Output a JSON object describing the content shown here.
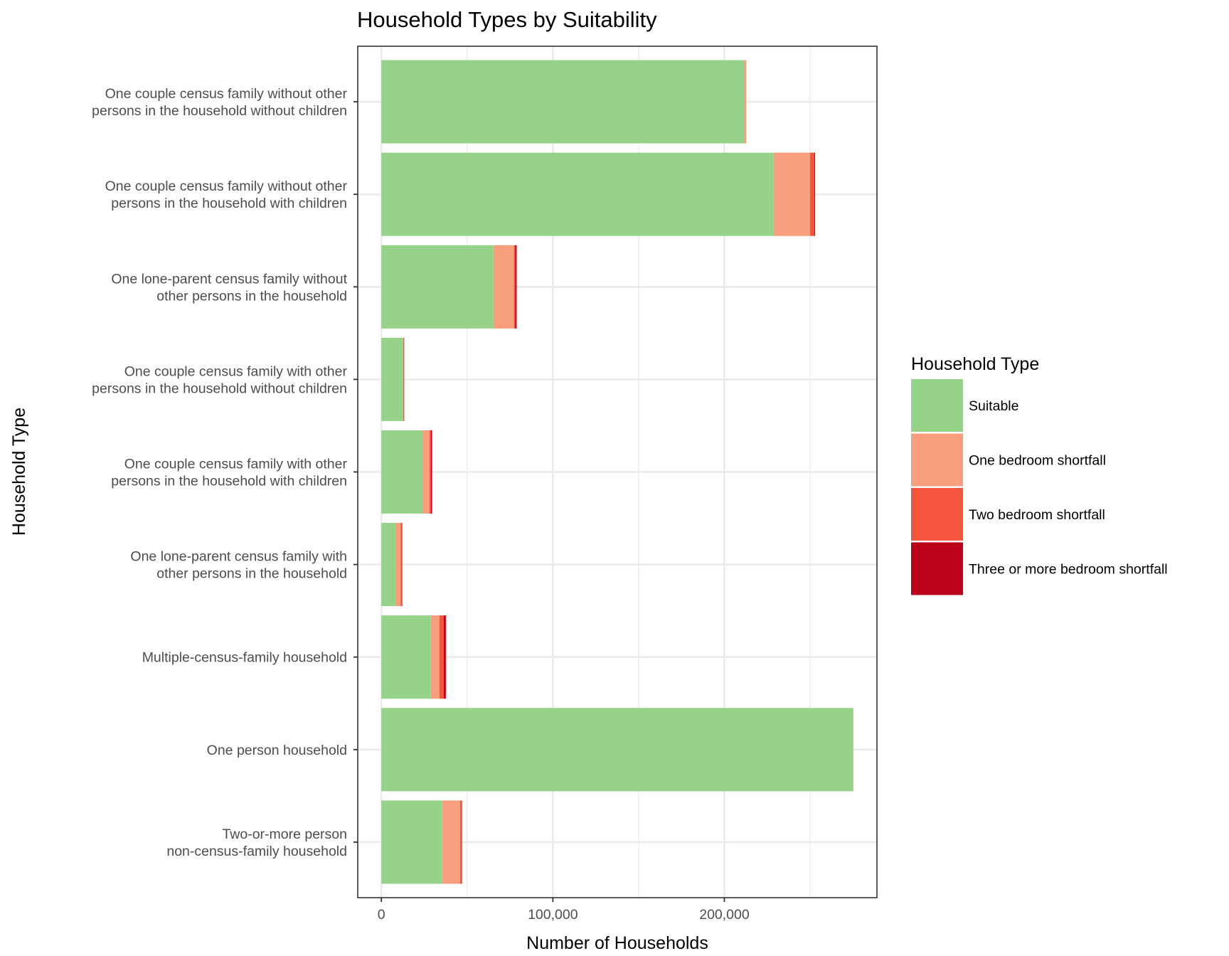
{
  "chart_data": {
    "type": "bar",
    "orientation": "horizontal",
    "stacked": true,
    "title": "Household Types by Suitability",
    "xlabel": "Number of Households",
    "ylabel": "Household Type",
    "xlim": [
      -13760,
      288960
    ],
    "x_ticks": [
      0,
      100000,
      200000
    ],
    "x_tick_labels": [
      "0",
      "100,000",
      "200,000"
    ],
    "grid": true,
    "legend": {
      "title": "Household Type",
      "position": "right"
    },
    "categories": [
      [
        "One couple census family without other",
        "persons in the household without children"
      ],
      [
        "One couple census family without other",
        "persons in the household with children"
      ],
      [
        "One lone-parent census family without",
        "other persons in the household"
      ],
      [
        "One couple census family with other",
        "persons in the household without children"
      ],
      [
        "One couple census family with other",
        "persons in the household with children"
      ],
      [
        "One lone-parent census family with",
        "other persons in the household"
      ],
      [
        "Multiple-census-family household"
      ],
      [
        "One person household"
      ],
      [
        "Two-or-more person",
        "non-census-family household"
      ]
    ],
    "series": [
      {
        "name": "Suitable",
        "color": "#95D389",
        "values": [
          211600,
          228500,
          65300,
          12500,
          24000,
          7900,
          28900,
          275200,
          35500
        ]
      },
      {
        "name": "One bedroom shortfall",
        "color": "#F89E7D",
        "values": [
          1200,
          21500,
          12000,
          300,
          4100,
          3300,
          5000,
          0,
          10400
        ]
      },
      {
        "name": "Two bedroom shortfall",
        "color": "#F5543C",
        "values": [
          0,
          2500,
          800,
          300,
          800,
          1100,
          2500,
          0,
          800
        ]
      },
      {
        "name": "Three or more bedroom shortfall",
        "color": "#BB0019",
        "values": [
          0,
          400,
          800,
          100,
          700,
          0,
          1200,
          0,
          300
        ]
      }
    ]
  }
}
